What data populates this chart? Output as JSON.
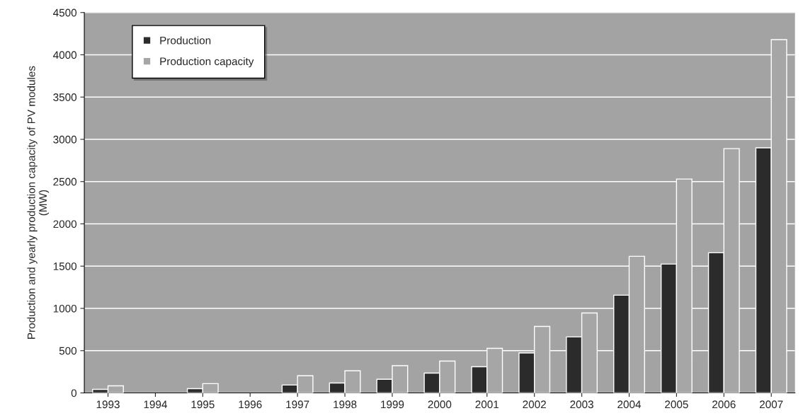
{
  "chart_data": {
    "type": "bar",
    "ylabel": "Production and yearly production capacity of PV modules\n(MW)",
    "categories": [
      "1993",
      "1994",
      "1995",
      "1996",
      "1997",
      "1998",
      "1999",
      "2000",
      "2001",
      "2002",
      "2003",
      "2004",
      "2005",
      "2006",
      "2007"
    ],
    "series": [
      {
        "name": "Production",
        "color": "#2b2b2b",
        "values": [
          42,
          null,
          50,
          null,
          93,
          118,
          161,
          235,
          310,
          473,
          662,
          1156,
          1524,
          1658,
          2900
        ]
      },
      {
        "name": "Production capacity",
        "color": "#a6a6a6",
        "values": [
          84,
          null,
          110,
          null,
          203,
          262,
          322,
          377,
          528,
          787,
          946,
          1616,
          2530,
          2890,
          4180
        ]
      }
    ],
    "ylim": [
      0,
      4500
    ],
    "yticks": [
      0,
      500,
      1000,
      1500,
      2000,
      2500,
      3000,
      3500,
      4000,
      4500
    ],
    "grid": "y",
    "legend": "top left"
  }
}
